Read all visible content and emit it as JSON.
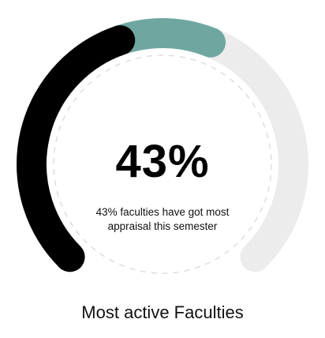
{
  "gauge": {
    "value_text": "43%",
    "caption": "43% faculties have got most appraisal this semester",
    "segments": [
      {
        "label": "black",
        "fraction": 0.43,
        "color": "#000000"
      },
      {
        "label": "teal",
        "fraction": 0.15,
        "color": "#6fa7a0"
      },
      {
        "label": "remaining",
        "fraction": 0.42,
        "color": "#ececec"
      }
    ],
    "inner_ring_color": "#dddddd"
  },
  "title": "Most active Faculties"
}
